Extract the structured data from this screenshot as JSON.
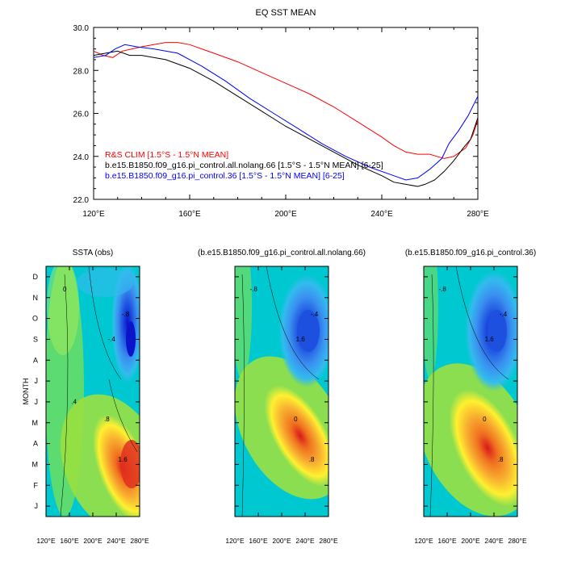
{
  "chart_data": [
    {
      "type": "line",
      "title": "EQ SST MEAN",
      "xlabel": "",
      "ylabel": "",
      "xlim": [
        120,
        280
      ],
      "ylim": [
        22,
        30
      ],
      "x_ticks": [
        120,
        160,
        200,
        240,
        280
      ],
      "x_tick_labels": [
        "120°E",
        "160°E",
        "200°E",
        "240°E",
        "280°E"
      ],
      "y_ticks": [
        22,
        24,
        26,
        28,
        30
      ],
      "y_tick_labels": [
        "22.0",
        "24.0",
        "26.0",
        "28.0",
        "30.0"
      ],
      "legend_position": "lower-left",
      "series": [
        {
          "name": "R&S CLIM [1.5°S - 1.5°N MEAN]",
          "color": "#ff0000",
          "x": [
            120,
            124,
            128,
            132,
            136,
            140,
            145,
            150,
            155,
            160,
            170,
            180,
            190,
            200,
            210,
            220,
            230,
            240,
            245,
            250,
            255,
            260,
            263,
            266,
            270,
            275,
            278,
            280
          ],
          "y": [
            28.9,
            28.7,
            28.6,
            28.9,
            29.0,
            29.1,
            29.2,
            29.3,
            29.3,
            29.2,
            28.8,
            28.4,
            27.9,
            27.4,
            26.9,
            26.3,
            25.6,
            24.9,
            24.5,
            24.2,
            24.1,
            24.1,
            24.0,
            23.9,
            24.0,
            24.4,
            25.0,
            25.7
          ]
        },
        {
          "name": "b.e15.B1850.f09_g16.pi_control.all.nolang.66 [1.5°S - 1.5°N MEAN] [6-25]",
          "color": "#000000",
          "x": [
            120,
            125,
            130,
            135,
            140,
            150,
            160,
            170,
            180,
            190,
            200,
            210,
            220,
            230,
            240,
            245,
            250,
            255,
            258,
            262,
            266,
            270,
            274,
            277,
            280
          ],
          "y": [
            28.7,
            28.8,
            28.9,
            28.7,
            28.7,
            28.5,
            28.1,
            27.5,
            26.8,
            26.1,
            25.4,
            24.8,
            24.2,
            23.6,
            23.1,
            22.8,
            22.7,
            22.6,
            22.7,
            22.9,
            23.3,
            23.8,
            24.4,
            24.8,
            25.8
          ]
        },
        {
          "name": "b.e15.B1850.f09_g16.pi_control.36 [1.5°S - 1.5°N MEAN] [6-25]",
          "color": "#0000ff",
          "x": [
            120,
            125,
            129,
            133,
            138,
            145,
            155,
            165,
            175,
            185,
            195,
            205,
            215,
            225,
            235,
            245,
            250,
            255,
            260,
            265,
            268,
            272,
            276,
            280
          ],
          "y": [
            28.6,
            28.7,
            29.0,
            29.2,
            29.1,
            29.0,
            28.8,
            28.2,
            27.5,
            26.7,
            26.0,
            25.3,
            24.6,
            24.0,
            23.5,
            23.1,
            22.9,
            23.0,
            23.4,
            23.9,
            24.6,
            25.2,
            25.9,
            26.8
          ]
        }
      ]
    },
    {
      "type": "heatmap",
      "title": "SSTA (obs)",
      "ylabel": "MONTH",
      "x_tick_labels": [
        "120°E",
        "160°E",
        "200°E",
        "240°E",
        "280°E"
      ],
      "y_tick_labels": [
        "J",
        "F",
        "M",
        "A",
        "M",
        "J",
        "J",
        "A",
        "S",
        "O",
        "N",
        "D"
      ],
      "contour_labels": [
        "0",
        "-.8",
        "-.4",
        "1.6",
        ".8",
        ".4"
      ]
    },
    {
      "type": "heatmap",
      "title": "(b.e15.B1850.f09_g16.pi_control.all.nolang.66)",
      "x_tick_labels": [
        "120°E",
        "160°E",
        "200°E",
        "240°E",
        "280°E"
      ],
      "contour_labels": [
        "-.8",
        "-.4",
        "1.6",
        ".8",
        "0"
      ]
    },
    {
      "type": "heatmap",
      "title": "(b.e15.B1850.f09_g16.pi_control.36)",
      "x_tick_labels": [
        "120°E",
        "160°E",
        "200°E",
        "240°E",
        "280°E"
      ],
      "contour_labels": [
        "-.8",
        "-.4",
        "1.6",
        ".8",
        "0"
      ]
    }
  ]
}
